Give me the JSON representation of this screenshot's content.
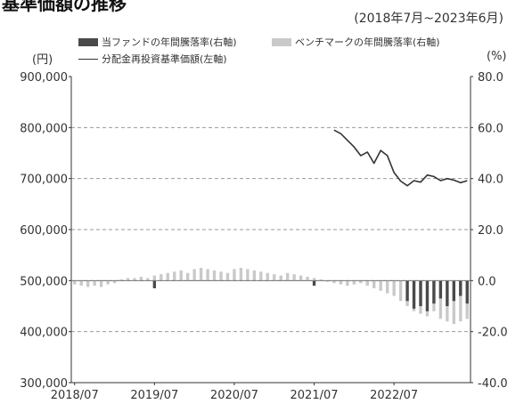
{
  "header": {
    "title": "基準価額の推移",
    "period": "(2018年7月~2023年6月)"
  },
  "legend": {
    "fund": "当ファンドの年間騰落率(右軸)",
    "benchmark": "ベンチマークの年間騰落率(右軸)",
    "nav": "分配金再投資基準価額(左軸)"
  },
  "axis": {
    "left_unit": "(円)",
    "right_unit": "(%)"
  },
  "colors": {
    "fund_bar": "#4a4a4a",
    "benchmark_bar": "#c9c9c9",
    "nav_line": "#333333",
    "axis": "#333333",
    "grid": "#999999"
  },
  "chart_data": {
    "type": "bar",
    "title": "",
    "xlabel": "",
    "left_ylabel": "(円)",
    "right_ylabel": "(%)",
    "left_ylim": [
      300000,
      900000
    ],
    "right_ylim": [
      -40,
      80
    ],
    "left_ticks": [
      "900,000",
      "800,000",
      "700,000",
      "600,000",
      "500,000",
      "400,000",
      "300,000"
    ],
    "right_ticks": [
      "80.0",
      "60.0",
      "40.0",
      "20.0",
      "0.0",
      "-20.0",
      "-40.0"
    ],
    "x_tick_labels": [
      "2018/07",
      "2019/07",
      "2020/07",
      "2021/07",
      "2022/07"
    ],
    "grid": true,
    "benchmark_values": [
      -1.5,
      -2,
      -2.5,
      -2,
      -2.5,
      -1.5,
      -1,
      0.5,
      1,
      1,
      1.5,
      1,
      2,
      2.5,
      3,
      3.5,
      4,
      3,
      4.5,
      5,
      4.5,
      4,
      3.5,
      3,
      4.5,
      5,
      4.5,
      4,
      3.5,
      3,
      2.5,
      2,
      3,
      2.5,
      2,
      1.5,
      1,
      0.5,
      -0.5,
      -1,
      -1.5,
      -2,
      -1.5,
      -1,
      -2,
      -3,
      -4,
      -5,
      -6,
      -8,
      -10,
      -12,
      -13,
      -14,
      -12,
      -15,
      -16,
      -17,
      -16,
      -15
    ],
    "fund_values": [
      null,
      null,
      null,
      null,
      null,
      null,
      null,
      null,
      null,
      null,
      null,
      null,
      -3,
      null,
      null,
      null,
      null,
      null,
      null,
      null,
      null,
      null,
      null,
      null,
      null,
      null,
      null,
      null,
      null,
      null,
      null,
      null,
      null,
      null,
      null,
      null,
      -2,
      null,
      null,
      null,
      null,
      null,
      null,
      null,
      null,
      null,
      null,
      null,
      null,
      null,
      -8,
      -11,
      -10,
      -12,
      -9,
      -7,
      -10,
      -8,
      -6,
      -9
    ],
    "series": [
      {
        "name": "分配金再投資基準価額(左軸)",
        "axis": "left",
        "start_index": 39,
        "values": [
          795000,
          788000,
          775000,
          762000,
          745000,
          752000,
          730000,
          755000,
          745000,
          712000,
          695000,
          686000,
          696000,
          693000,
          707000,
          704000,
          696000,
          700000,
          697000,
          692000,
          696000
        ]
      }
    ]
  }
}
